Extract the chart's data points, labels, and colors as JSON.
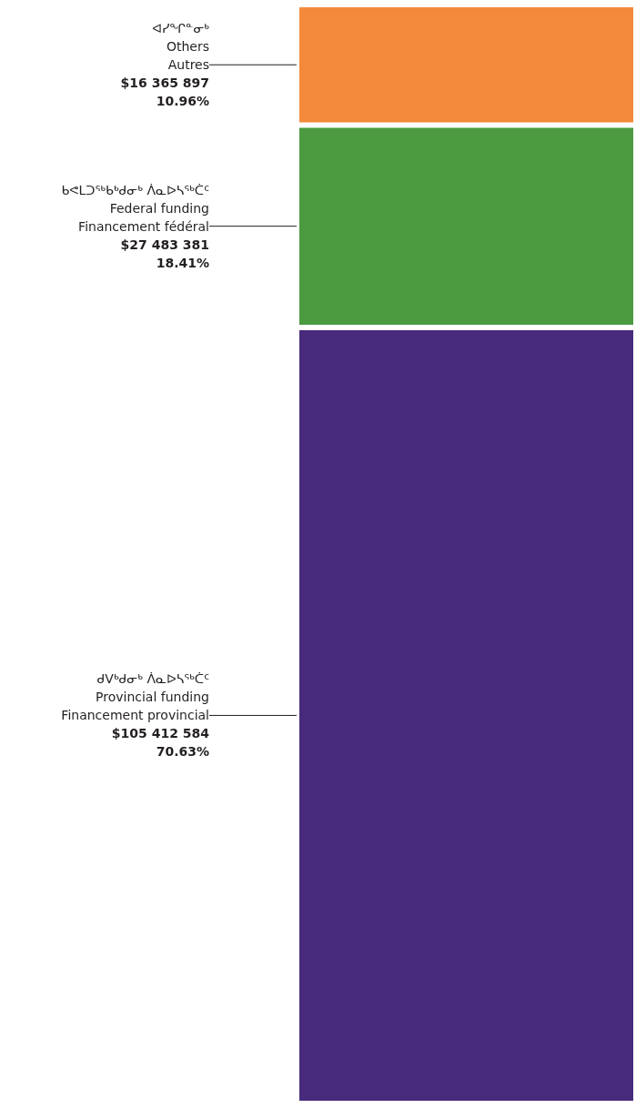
{
  "chart_data": {
    "type": "bar",
    "stacked": true,
    "categories": [
      null
    ],
    "series": [
      {
        "name": "ᑯᐯᒃᑯᓂᒃ ᐲᓇᐅᓴᖅᑖᑦ\nProvincial funding\nFinancement provincial",
        "color": "#472a7c",
        "values": [
          105412584
        ],
        "value_labels": [
          "$105 412 584\n70.63%"
        ]
      },
      {
        "name": "ᑲᕙᒪᑐᖅᑲᒃᑯᓂᒃ ᐲᓇᐅᓴᖅᑖᑦ\nFederal funding\nFinancement fédéral",
        "color": "#4b9a40",
        "values": [
          27483381
        ],
        "value_labels": [
          "$27 483 381\n18.41%"
        ]
      },
      {
        "name": "ᐊᓯᖏᓐᓂᒃ\nOthers\nAutres",
        "color": "#f3893a",
        "values": [
          16365897
        ],
        "value_labels": [
          "$16 365 897\n10.96%"
        ]
      }
    ],
    "legend": false
  }
}
